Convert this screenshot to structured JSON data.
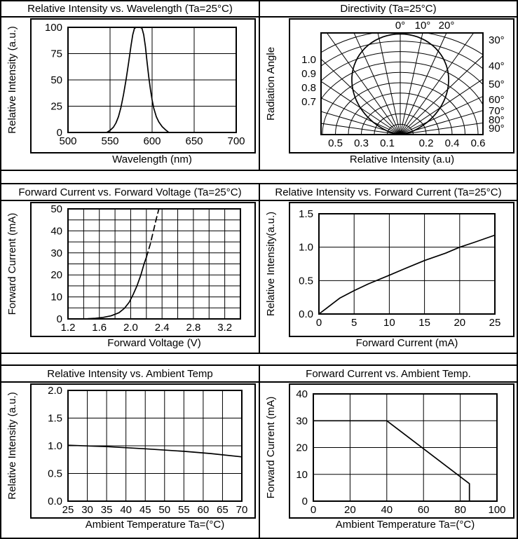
{
  "figure": {
    "background": "#ffffff",
    "line_color": "#000000"
  },
  "chart_data": [
    {
      "id": "spectrum",
      "type": "line",
      "title": "Relative Intensity vs. Wavelength (Ta=25°C)",
      "xlabel": "Wavelength (nm)",
      "ylabel": "Relative Intensity (a.u.)",
      "xlim": [
        500,
        700
      ],
      "ylim": [
        0,
        100
      ],
      "xticks": [
        {
          "v": 500,
          "t": "500"
        },
        {
          "v": 550,
          "t": "550"
        },
        {
          "v": 600,
          "t": "600"
        },
        {
          "v": 650,
          "t": "650"
        },
        {
          "v": 700,
          "t": "700"
        }
      ],
      "yticks": [
        {
          "v": 0,
          "t": "0"
        },
        {
          "v": 25,
          "t": "25"
        },
        {
          "v": 50,
          "t": "50"
        },
        {
          "v": 75,
          "t": "75"
        },
        {
          "v": 100,
          "t": "100"
        }
      ],
      "xgrid": [
        550,
        600,
        650
      ],
      "ygrid": [
        25,
        50,
        75
      ],
      "grid": true,
      "series": [
        {
          "name": "relative-intensity",
          "points": [
            [
              546,
              0
            ],
            [
              550,
              2
            ],
            [
              554,
              5
            ],
            [
              557,
              9
            ],
            [
              560,
              15
            ],
            [
              563,
              24
            ],
            [
              566,
              36
            ],
            [
              569,
              50
            ],
            [
              572,
              66
            ],
            [
              575,
              83
            ],
            [
              577,
              93
            ],
            [
              579,
              99
            ],
            [
              581,
              100
            ],
            [
              586,
              100
            ],
            [
              588,
              99
            ],
            [
              590,
              93
            ],
            [
              592,
              82
            ],
            [
              594,
              67
            ],
            [
              596,
              53
            ],
            [
              598,
              41
            ],
            [
              600,
              31
            ],
            [
              602,
              23
            ],
            [
              605,
              15
            ],
            [
              608,
              10
            ],
            [
              612,
              5.5
            ],
            [
              616,
              2.5
            ],
            [
              620,
              0
            ]
          ]
        }
      ]
    },
    {
      "id": "directivity",
      "type": "polar",
      "title": "Directivity (Ta=25°C)",
      "xlabel": "Relative Intensity (a.u)",
      "ylabel": "Radiation Angle",
      "angle_step_deg": 10,
      "angle_range_deg": [
        -90,
        90
      ],
      "radius_arcs": [
        0.1,
        0.2,
        0.3,
        0.4,
        0.5,
        0.6,
        0.7,
        0.8,
        0.9,
        1.0
      ],
      "top_angle_labels": [
        {
          "v": 0,
          "t": "0°"
        },
        {
          "v": 10,
          "t": "10°"
        },
        {
          "v": 20,
          "t": "20°"
        }
      ],
      "right_angle_labels": [
        {
          "t": "30°"
        },
        {
          "t": "40°"
        },
        {
          "t": "50°"
        },
        {
          "t": "60°"
        },
        {
          "t": "70°"
        },
        {
          "t": "80°"
        },
        {
          "t": "90°"
        }
      ],
      "radius_labels": [
        {
          "r": 1.0,
          "t": "1.0"
        },
        {
          "r": 0.9,
          "t": "0.9"
        },
        {
          "r": 0.8,
          "t": "0.8"
        },
        {
          "r": 0.7,
          "t": "0.7"
        }
      ],
      "bottom_labels": [
        {
          "v": -0.5,
          "t": "0.5"
        },
        {
          "v": -0.3,
          "t": "0.3"
        },
        {
          "v": -0.1,
          "t": "0.1"
        },
        {
          "v": 0.2,
          "t": "0.2"
        },
        {
          "v": 0.4,
          "t": "0.4"
        },
        {
          "v": 0.6,
          "t": "0.6"
        }
      ],
      "lobe": {
        "peak": 0.97,
        "cosine_exponent": 2
      }
    },
    {
      "id": "vf",
      "type": "line",
      "title": "Forward Current vs. Forward Voltage (Ta=25°C)",
      "xlabel": "Forward Voltage (V)",
      "ylabel": "Forward Current (mA)",
      "xlim": [
        1.2,
        3.4
      ],
      "ylim": [
        0,
        50
      ],
      "xticks": [
        {
          "v": 1.2,
          "t": "1.2"
        },
        {
          "v": 1.6,
          "t": "1.6"
        },
        {
          "v": 2.0,
          "t": "2.0"
        },
        {
          "v": 2.4,
          "t": "2.4"
        },
        {
          "v": 2.8,
          "t": "2.8"
        },
        {
          "v": 3.2,
          "t": "3.2"
        }
      ],
      "yticks": [
        {
          "v": 0,
          "t": "0"
        },
        {
          "v": 10,
          "t": "10"
        },
        {
          "v": 20,
          "t": "20"
        },
        {
          "v": 30,
          "t": "30"
        },
        {
          "v": 40,
          "t": "40"
        },
        {
          "v": 50,
          "t": "50"
        }
      ],
      "xgrid": [
        1.4,
        1.6,
        1.8,
        2.0,
        2.2,
        2.4,
        2.6,
        2.8,
        3.0,
        3.2
      ],
      "ygrid": [
        5,
        10,
        15,
        20,
        25,
        30,
        35,
        40,
        45
      ],
      "grid": true,
      "series": [
        {
          "name": "iv-curve-solid",
          "points": [
            [
              1.2,
              0
            ],
            [
              1.45,
              0.1
            ],
            [
              1.55,
              0.3
            ],
            [
              1.65,
              0.7
            ],
            [
              1.75,
              1.4
            ],
            [
              1.85,
              2.8
            ],
            [
              1.92,
              4.8
            ],
            [
              1.98,
              7.5
            ],
            [
              2.03,
              11
            ],
            [
              2.08,
              15
            ],
            [
              2.13,
              20
            ],
            [
              2.17,
              25
            ],
            [
              2.2,
              28
            ]
          ]
        },
        {
          "name": "iv-curve-dashed",
          "dashed": true,
          "points": [
            [
              2.2,
              28
            ],
            [
              2.25,
              34
            ],
            [
              2.29,
              40
            ],
            [
              2.33,
              46
            ],
            [
              2.36,
              50
            ]
          ]
        }
      ]
    },
    {
      "id": "ri_if",
      "type": "line",
      "title": "Relative Intensity vs. Forward Current (Ta=25°C)",
      "xlabel": "Forward Current (mA)",
      "ylabel": "Relative Intensity(a.u.)",
      "xlim": [
        0,
        25
      ],
      "ylim": [
        0,
        1.5
      ],
      "xticks": [
        {
          "v": 0,
          "t": "0"
        },
        {
          "v": 5,
          "t": "5"
        },
        {
          "v": 10,
          "t": "10"
        },
        {
          "v": 15,
          "t": "15"
        },
        {
          "v": 20,
          "t": "20"
        },
        {
          "v": 25,
          "t": "25"
        }
      ],
      "yticks": [
        {
          "v": 0,
          "t": "0.0"
        },
        {
          "v": 0.5,
          "t": "0.5"
        },
        {
          "v": 1.0,
          "t": "1.0"
        },
        {
          "v": 1.5,
          "t": "1.5"
        }
      ],
      "xgrid": [
        5,
        10,
        15,
        20
      ],
      "ygrid": [
        0.5,
        1.0
      ],
      "grid": true,
      "series": [
        {
          "name": "ri-vs-if",
          "points": [
            [
              0,
              0
            ],
            [
              1,
              0.08
            ],
            [
              2,
              0.16
            ],
            [
              3,
              0.24
            ],
            [
              5,
              0.35
            ],
            [
              7,
              0.45
            ],
            [
              10,
              0.58
            ],
            [
              12,
              0.67
            ],
            [
              15,
              0.8
            ],
            [
              18,
              0.91
            ],
            [
              20,
              1.0
            ],
            [
              22,
              1.07
            ],
            [
              25,
              1.18
            ]
          ]
        }
      ]
    },
    {
      "id": "ri_ta",
      "type": "line",
      "title": "Relative Intensity vs. Ambient Temp",
      "xlabel": "Ambient Temperature Ta=(°C)",
      "ylabel": "Relative Intensity (a.u.)",
      "xlim": [
        25,
        70
      ],
      "ylim": [
        0,
        2.0
      ],
      "xticks": [
        {
          "v": 25,
          "t": "25"
        },
        {
          "v": 30,
          "t": "30"
        },
        {
          "v": 35,
          "t": "35"
        },
        {
          "v": 40,
          "t": "40"
        },
        {
          "v": 45,
          "t": "45"
        },
        {
          "v": 50,
          "t": "50"
        },
        {
          "v": 55,
          "t": "55"
        },
        {
          "v": 60,
          "t": "60"
        },
        {
          "v": 65,
          "t": "65"
        },
        {
          "v": 70,
          "t": "70"
        }
      ],
      "yticks": [
        {
          "v": 0,
          "t": "0.0"
        },
        {
          "v": 0.5,
          "t": "0.5"
        },
        {
          "v": 1.0,
          "t": "1.0"
        },
        {
          "v": 1.5,
          "t": "1.5"
        },
        {
          "v": 2.0,
          "t": "2.0"
        }
      ],
      "xgrid": [
        30,
        35,
        40,
        45,
        50,
        55,
        60,
        65
      ],
      "ygrid": [
        0.5,
        1.0,
        1.5
      ],
      "grid": true,
      "series": [
        {
          "name": "ri-vs-ta",
          "points": [
            [
              25,
              1.01
            ],
            [
              35,
              0.985
            ],
            [
              45,
              0.945
            ],
            [
              55,
              0.9
            ],
            [
              62,
              0.86
            ],
            [
              70,
              0.8
            ]
          ]
        }
      ]
    },
    {
      "id": "if_ta",
      "type": "line",
      "title": "Forward Current vs. Ambient Temp.",
      "xlabel": "Ambient Temperature Ta=(°C)",
      "ylabel": "Forward Current (mA)",
      "xlim": [
        0,
        100
      ],
      "ylim": [
        0,
        40
      ],
      "xticks": [
        {
          "v": 0,
          "t": "0"
        },
        {
          "v": 20,
          "t": "20"
        },
        {
          "v": 40,
          "t": "40"
        },
        {
          "v": 60,
          "t": "60"
        },
        {
          "v": 80,
          "t": "80"
        },
        {
          "v": 100,
          "t": "100"
        }
      ],
      "yticks": [
        {
          "v": 0,
          "t": "0"
        },
        {
          "v": 10,
          "t": "10"
        },
        {
          "v": 20,
          "t": "20"
        },
        {
          "v": 30,
          "t": "30"
        },
        {
          "v": 40,
          "t": "40"
        }
      ],
      "xgrid": [
        20,
        40,
        60,
        80
      ],
      "ygrid": [
        10,
        20,
        30
      ],
      "grid": true,
      "series": [
        {
          "name": "derating",
          "points": [
            [
              0,
              30
            ],
            [
              40,
              30
            ],
            [
              85,
              6.5
            ],
            [
              85,
              0
            ]
          ]
        }
      ]
    }
  ]
}
